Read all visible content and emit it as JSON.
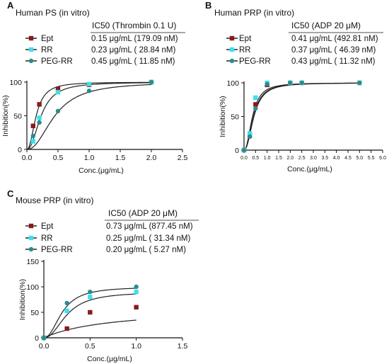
{
  "colors": {
    "ept": "#8b1a1a",
    "rr": "#3ee0ee",
    "peg": "#2e8b8b",
    "axis": "#111111",
    "curve": "#222222"
  },
  "panels": [
    {
      "letter": "A",
      "title": "Human PS (in vitro)",
      "ic50_header": "IC50 (Thrombin 0.1 U)",
      "legend": [
        {
          "name": "Ept",
          "value": "0.15 μg/mL (179.09 nM)",
          "marker": "square",
          "color_key": "ept"
        },
        {
          "name": "RR",
          "value": "0.23 μg/mL (  28.84 nM)",
          "marker": "square",
          "color_key": "rr"
        },
        {
          "name": "PEG-RR",
          "value": "0.45 μg/mL (  11.85 nM)",
          "marker": "circle",
          "color_key": "peg"
        }
      ],
      "chart_data": {
        "type": "scatter",
        "xlabel": "Conc.(μg/mL)",
        "ylabel": "Inhibition(%)",
        "xlim": [
          0,
          2.5
        ],
        "ylim": [
          0,
          100
        ],
        "xticks": [
          "0.0",
          "0.5",
          "1.0",
          "1.5",
          "2.0",
          "2.5"
        ],
        "yticks": [
          "0",
          "50",
          "100"
        ],
        "grid": false,
        "series": [
          {
            "name": "Ept",
            "points": [
              [
                0.1,
                35
              ],
              [
                0.2,
                67
              ],
              [
                0.5,
                90
              ],
              [
                1.0,
                96
              ],
              [
                2.0,
                100
              ]
            ],
            "ic50": 0.15
          },
          {
            "name": "RR",
            "points": [
              [
                0.1,
                12
              ],
              [
                0.2,
                47
              ],
              [
                0.5,
                85
              ],
              [
                1.0,
                97
              ],
              [
                2.0,
                100
              ]
            ],
            "ic50": 0.23
          },
          {
            "name": "PEG-RR",
            "points": [
              [
                0.1,
                20
              ],
              [
                0.2,
                40
              ],
              [
                0.5,
                57
              ],
              [
                1.0,
                87
              ],
              [
                2.0,
                100
              ]
            ],
            "ic50": 0.45
          }
        ]
      }
    },
    {
      "letter": "B",
      "title": "Human PRP (in vitro)",
      "ic50_header": "IC50 (ADP 20 μM)",
      "legend": [
        {
          "name": "Ept",
          "value": "0.41 μg/mL (492.81 nM)",
          "marker": "square",
          "color_key": "ept"
        },
        {
          "name": "RR",
          "value": "0.37 μg/mL (  46.39 nM)",
          "marker": "square",
          "color_key": "rr"
        },
        {
          "name": "PEG-RR",
          "value": "0.43 μg/mL (  11.32 nM)",
          "marker": "circle",
          "color_key": "peg"
        }
      ],
      "chart_data": {
        "type": "scatter",
        "xlabel": "Conc.(μg/mL)",
        "ylabel": "Inhibition(%)",
        "xlim": [
          0,
          6.0
        ],
        "ylim": [
          0,
          100
        ],
        "xticks": [
          "0.0",
          "0.5",
          "1.0",
          "1.5",
          "2.0",
          "2.5",
          "3.0",
          "3.5",
          "4.0",
          "4.5",
          "5.0",
          "5.5",
          "6.0"
        ],
        "yticks": [
          "0",
          "50",
          "100"
        ],
        "grid": false,
        "series": [
          {
            "name": "Ept",
            "points": [
              [
                0,
                0
              ],
              [
                0.25,
                22
              ],
              [
                0.5,
                68
              ],
              [
                1.0,
                97
              ],
              [
                2.0,
                100
              ],
              [
                2.5,
                100
              ],
              [
                5.0,
                100
              ]
            ],
            "ic50": 0.41
          },
          {
            "name": "RR",
            "points": [
              [
                0,
                0
              ],
              [
                0.25,
                25
              ],
              [
                0.5,
                78
              ],
              [
                1.0,
                100
              ],
              [
                2.0,
                100
              ],
              [
                2.5,
                100
              ],
              [
                5.0,
                100
              ]
            ],
            "ic50": 0.37
          },
          {
            "name": "PEG-RR",
            "points": [
              [
                0,
                0
              ],
              [
                0.25,
                20
              ],
              [
                0.5,
                62
              ],
              [
                1.0,
                98
              ],
              [
                2.0,
                100
              ],
              [
                2.5,
                100
              ],
              [
                5.0,
                100
              ]
            ],
            "ic50": 0.43
          }
        ]
      }
    },
    {
      "letter": "C",
      "title": "Mouse PRP (in vitro)",
      "ic50_header": "IC50 (ADP 20 μM)",
      "legend": [
        {
          "name": "Ept",
          "value": "0.73 μg/mL (877.45 nM)",
          "marker": "square",
          "color_key": "ept"
        },
        {
          "name": "RR",
          "value": "0.25 μg/mL (  31.34 nM)",
          "marker": "square",
          "color_key": "rr"
        },
        {
          "name": "PEG-RR",
          "value": "0.20 μg/mL (    5.27 nM)",
          "marker": "circle",
          "color_key": "peg"
        }
      ],
      "chart_data": {
        "type": "scatter",
        "xlabel": "Conc.(μg/mL)",
        "ylabel": "Inhibition(%)",
        "xlim": [
          0,
          1.5
        ],
        "ylim": [
          0,
          150
        ],
        "xticks": [
          "0.0",
          "0.5",
          "1.0",
          "1.5"
        ],
        "yticks": [
          "0",
          "50",
          "100",
          "150"
        ],
        "grid": false,
        "series": [
          {
            "name": "Ept",
            "points": [
              [
                0,
                0
              ],
              [
                0.25,
                18
              ],
              [
                0.5,
                50
              ],
              [
                1.0,
                60
              ]
            ],
            "ic50": 0.73
          },
          {
            "name": "RR",
            "points": [
              [
                0,
                0
              ],
              [
                0.25,
                53
              ],
              [
                0.5,
                80
              ],
              [
                1.0,
                90
              ]
            ],
            "ic50": 0.25
          },
          {
            "name": "PEG-RR",
            "points": [
              [
                0,
                0
              ],
              [
                0.25,
                68
              ],
              [
                0.5,
                90
              ],
              [
                1.0,
                100
              ]
            ],
            "ic50": 0.2
          }
        ]
      }
    }
  ]
}
